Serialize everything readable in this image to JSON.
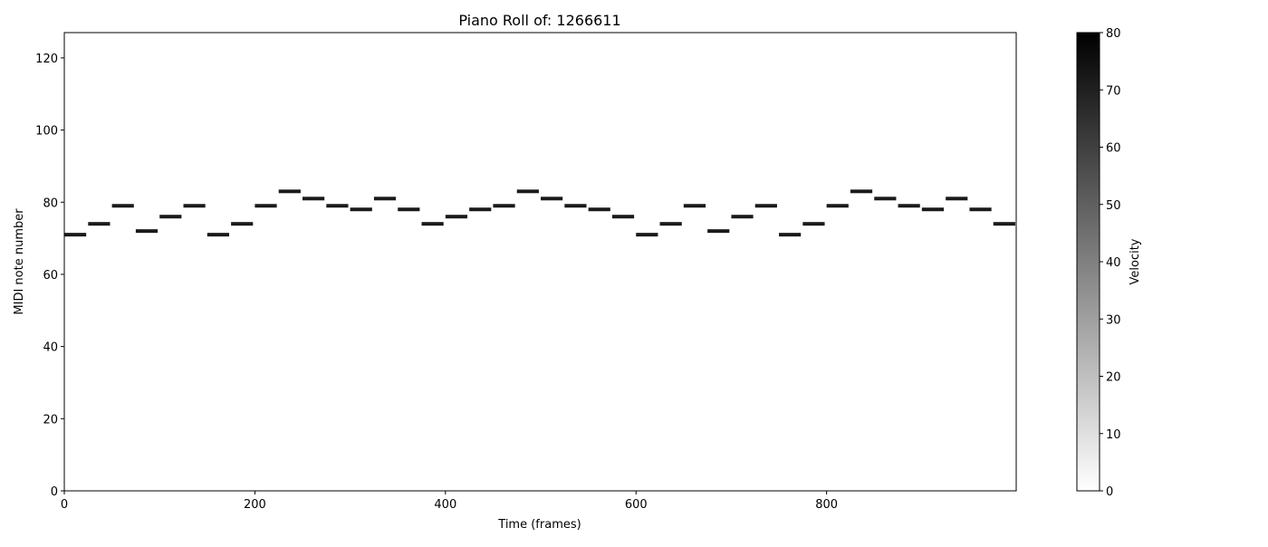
{
  "chart_data": {
    "type": "heatmap",
    "subtype": "piano-roll",
    "title": "Piano Roll of: 1266611",
    "xlabel": "Time (frames)",
    "ylabel": "MIDI note number",
    "xlim": [
      0,
      999
    ],
    "ylim": [
      0,
      127
    ],
    "x_ticks": [
      0,
      200,
      400,
      600,
      800
    ],
    "y_ticks": [
      0,
      20,
      40,
      60,
      80,
      100,
      120
    ],
    "grid": false,
    "colormap": "gray_r",
    "note_color": "#1a1a1a",
    "colorbar": {
      "label": "Velocity",
      "range": [
        0,
        80
      ],
      "ticks": [
        0,
        10,
        20,
        30,
        40,
        50,
        60,
        70,
        80
      ],
      "placement": "right"
    },
    "notes": [
      {
        "start": 0,
        "end": 23,
        "pitch": 71,
        "velocity": 80
      },
      {
        "start": 25,
        "end": 48,
        "pitch": 74,
        "velocity": 80
      },
      {
        "start": 50,
        "end": 73,
        "pitch": 79,
        "velocity": 80
      },
      {
        "start": 75,
        "end": 98,
        "pitch": 72,
        "velocity": 80
      },
      {
        "start": 100,
        "end": 123,
        "pitch": 76,
        "velocity": 80
      },
      {
        "start": 125,
        "end": 148,
        "pitch": 79,
        "velocity": 80
      },
      {
        "start": 150,
        "end": 173,
        "pitch": 71,
        "velocity": 80
      },
      {
        "start": 175,
        "end": 198,
        "pitch": 74,
        "velocity": 80
      },
      {
        "start": 200,
        "end": 223,
        "pitch": 79,
        "velocity": 80
      },
      {
        "start": 225,
        "end": 248,
        "pitch": 83,
        "velocity": 80
      },
      {
        "start": 250,
        "end": 273,
        "pitch": 81,
        "velocity": 80
      },
      {
        "start": 275,
        "end": 298,
        "pitch": 79,
        "velocity": 80
      },
      {
        "start": 300,
        "end": 323,
        "pitch": 78,
        "velocity": 80
      },
      {
        "start": 325,
        "end": 348,
        "pitch": 81,
        "velocity": 80
      },
      {
        "start": 350,
        "end": 373,
        "pitch": 78,
        "velocity": 80
      },
      {
        "start": 375,
        "end": 398,
        "pitch": 74,
        "velocity": 80
      },
      {
        "start": 400,
        "end": 423,
        "pitch": 76,
        "velocity": 80
      },
      {
        "start": 425,
        "end": 448,
        "pitch": 78,
        "velocity": 80
      },
      {
        "start": 450,
        "end": 473,
        "pitch": 79,
        "velocity": 80
      },
      {
        "start": 475,
        "end": 498,
        "pitch": 83,
        "velocity": 80
      },
      {
        "start": 500,
        "end": 523,
        "pitch": 81,
        "velocity": 80
      },
      {
        "start": 525,
        "end": 548,
        "pitch": 79,
        "velocity": 80
      },
      {
        "start": 550,
        "end": 573,
        "pitch": 78,
        "velocity": 80
      },
      {
        "start": 575,
        "end": 598,
        "pitch": 76,
        "velocity": 80
      },
      {
        "start": 600,
        "end": 623,
        "pitch": 71,
        "velocity": 80
      },
      {
        "start": 625,
        "end": 648,
        "pitch": 74,
        "velocity": 80
      },
      {
        "start": 650,
        "end": 673,
        "pitch": 79,
        "velocity": 80
      },
      {
        "start": 675,
        "end": 698,
        "pitch": 72,
        "velocity": 80
      },
      {
        "start": 700,
        "end": 723,
        "pitch": 76,
        "velocity": 80
      },
      {
        "start": 725,
        "end": 748,
        "pitch": 79,
        "velocity": 80
      },
      {
        "start": 750,
        "end": 773,
        "pitch": 71,
        "velocity": 80
      },
      {
        "start": 775,
        "end": 798,
        "pitch": 74,
        "velocity": 80
      },
      {
        "start": 800,
        "end": 823,
        "pitch": 79,
        "velocity": 80
      },
      {
        "start": 825,
        "end": 848,
        "pitch": 83,
        "velocity": 80
      },
      {
        "start": 850,
        "end": 873,
        "pitch": 81,
        "velocity": 80
      },
      {
        "start": 875,
        "end": 898,
        "pitch": 79,
        "velocity": 80
      },
      {
        "start": 900,
        "end": 923,
        "pitch": 78,
        "velocity": 80
      },
      {
        "start": 925,
        "end": 948,
        "pitch": 81,
        "velocity": 80
      },
      {
        "start": 950,
        "end": 973,
        "pitch": 78,
        "velocity": 80
      },
      {
        "start": 975,
        "end": 998,
        "pitch": 74,
        "velocity": 80
      }
    ]
  }
}
